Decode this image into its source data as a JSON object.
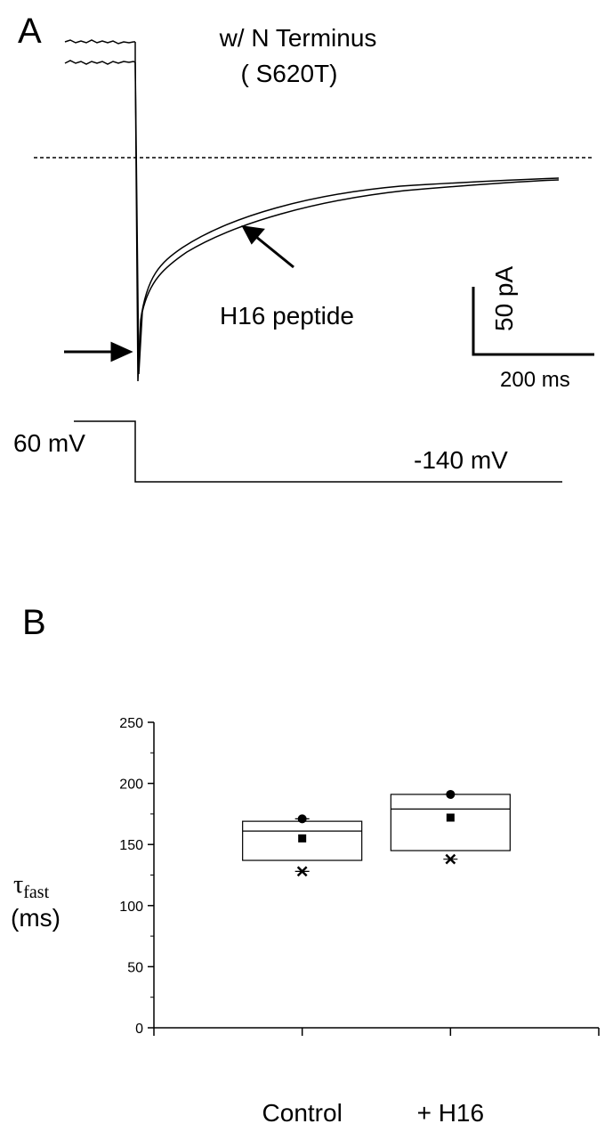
{
  "panel_a": {
    "label": "A",
    "title_line1": "w/  N Terminus",
    "title_line2": "( S620T)",
    "arrow_label": "H16 peptide",
    "scale_y": "50 pA",
    "scale_x": "200 ms",
    "hold_voltage": "60 mV",
    "step_voltage": "-140 mV"
  },
  "chart_data": {
    "type": "box",
    "panel_label": "B",
    "ylabel": "τ",
    "ylabel_sub": "fast",
    "ylabel_unit": "(ms)",
    "categories": [
      "Control",
      "+ H16"
    ],
    "q1": [
      137,
      145
    ],
    "median": [
      161,
      179
    ],
    "q3": [
      169,
      191
    ],
    "mean": [
      155,
      172
    ],
    "max": [
      171,
      191
    ],
    "min": [
      128,
      138
    ],
    "ylim": [
      0,
      250
    ],
    "yticks": [
      0,
      50,
      100,
      150,
      200,
      250
    ],
    "yticks_minor": [
      25,
      75,
      125,
      175,
      225
    ],
    "color": "#000000"
  }
}
